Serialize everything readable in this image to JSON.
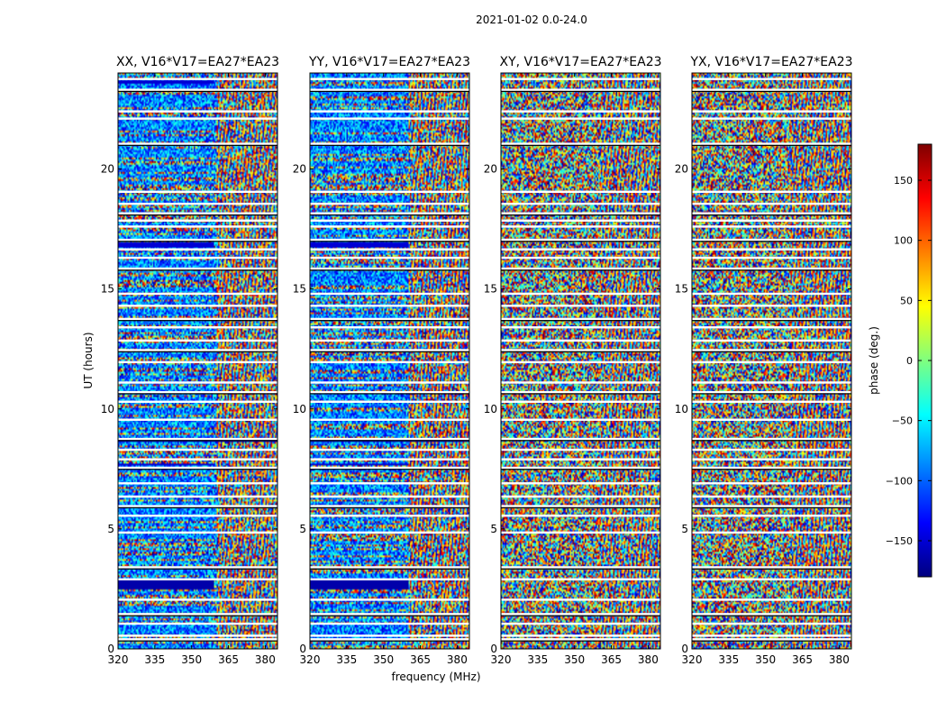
{
  "figure_title": "2021-01-02 0.0-24.0",
  "colors": {
    "background": "#ffffff",
    "flag_line": "#ffffff",
    "axis": "#000000",
    "colormap": [
      "#00007f",
      "#0000ff",
      "#007fff",
      "#00ffff",
      "#7fff7f",
      "#ffff00",
      "#ff7f00",
      "#ff0000",
      "#7f0000"
    ]
  },
  "chart_data": {
    "type": "heatmap",
    "colormap": "jet",
    "shared_xlabel": "frequency (MHz)",
    "shared_ylabel": "UT (hours)",
    "xlim": [
      320,
      385
    ],
    "ylim": [
      0,
      24
    ],
    "xticks": [
      320,
      335,
      350,
      365,
      380
    ],
    "yticks": [
      0,
      5,
      10,
      15,
      20
    ],
    "value_note": "phase values appear as noise-like spectral-temporal data across the full color range",
    "panels": [
      {
        "title": "XX, V16*V17=EA27*EA23",
        "pol": "XX"
      },
      {
        "title": "YY, V16*V17=EA27*EA23",
        "pol": "YY"
      },
      {
        "title": "XY, V16*V17=EA27*EA23",
        "pol": "XY"
      },
      {
        "title": "YX, V16*V17=EA27*EA23",
        "pol": "YX"
      }
    ],
    "colorbar": {
      "label": "phase (deg.)",
      "range": [
        -180,
        180
      ],
      "ticks": [
        -150,
        -100,
        -50,
        0,
        50,
        100,
        150
      ]
    },
    "flagged_rows_ut": [
      0.4,
      0.55,
      1.05,
      1.45,
      2.05,
      2.9,
      3.4,
      4.85,
      5.55,
      5.95,
      6.35,
      6.9,
      7.55,
      7.9,
      8.3,
      8.75,
      9.55,
      10.3,
      10.7,
      11.1,
      11.95,
      12.45,
      12.85,
      13.4,
      13.75,
      14.3,
      14.8,
      15.85,
      16.3,
      16.65,
      17.05,
      17.6,
      17.85,
      18.15,
      18.55,
      19.05,
      21.05,
      22.1,
      22.4,
      23.3,
      23.75
    ],
    "solid_rows": [
      {
        "pol": "XX",
        "ut": [
          16.7,
          16.95
        ],
        "phase": -150,
        "freq": [
          320,
          359
        ]
      },
      {
        "pol": "YY",
        "ut": [
          16.7,
          16.95
        ],
        "phase": -150,
        "freq": [
          320,
          360
        ]
      },
      {
        "pol": "XX",
        "ut": [
          2.5,
          2.9
        ],
        "phase": -165,
        "freq": [
          320,
          359
        ]
      },
      {
        "pol": "YY",
        "ut": [
          2.5,
          2.9
        ],
        "phase": -165,
        "freq": [
          320,
          360
        ]
      },
      {
        "pol": "XX",
        "ut": [
          7.65,
          7.75
        ],
        "phase": -150,
        "freq": [
          320,
          359
        ]
      },
      {
        "pol": "YY",
        "ut": [
          7.65,
          7.75
        ],
        "phase": -150,
        "freq": [
          320,
          360
        ]
      },
      {
        "pol": "XX",
        "ut": [
          8.65,
          8.75
        ],
        "phase": -165,
        "freq": [
          320,
          385
        ]
      },
      {
        "pol": "YY",
        "ut": [
          8.65,
          8.75
        ],
        "phase": -165,
        "freq": [
          320,
          385
        ]
      },
      {
        "pol": "XX",
        "ut": [
          23.55,
          23.7
        ],
        "phase": -150,
        "freq": [
          320,
          359
        ]
      }
    ]
  }
}
